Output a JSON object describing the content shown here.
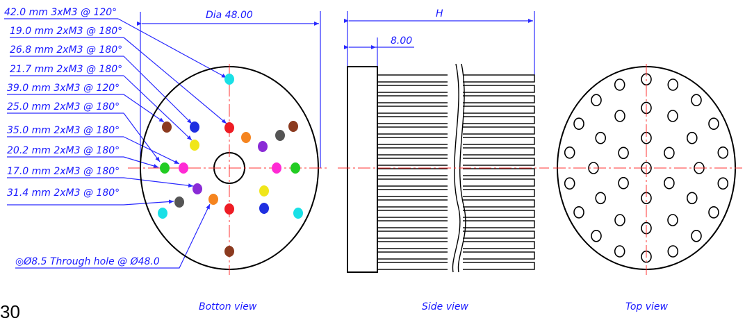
{
  "callouts": [
    {
      "label": "42.0 mm 3xM3 @ 120°",
      "color": "#19e0e6"
    },
    {
      "label": "19.0 mm 2xM3 @ 180°",
      "color": "#ee1c24"
    },
    {
      "label": "26.8 mm 2xM3 @ 180°",
      "color": "#1f2fe0"
    },
    {
      "label": "21.7 mm 2xM3 @ 180°",
      "color": "#f0e61a"
    },
    {
      "label": "39.0 mm 3xM3 @ 120°",
      "color": "#8b3a1f"
    },
    {
      "label": "25.0 mm 2xM3 @ 180°",
      "color": "#22cc22"
    },
    {
      "label": "35.0 mm 2xM3 @ 180°",
      "color": "#ff2ad4"
    },
    {
      "label": "20.2 mm 2xM3 @ 180°",
      "color": "#ff2ad4"
    },
    {
      "label": "17.0 mm 2xM3 @ 180°",
      "color": "#8a2bd6"
    },
    {
      "label": "31.4 mm 2xM3 @ 180°",
      "color": "#555555"
    }
  ],
  "through_hole_note": "◎Ø8.5 Through hole @ Ø48.0",
  "dimensions": {
    "diameter": "Dia 48.00",
    "height": "H",
    "base_thickness": "8.00"
  },
  "captions": {
    "bottom": "Botton view",
    "side": "Side view",
    "top": "Top view"
  },
  "page_number": "30",
  "hole_colors": {
    "cyan": "#19e0e6",
    "red": "#ee1c24",
    "blue": "#1f2fe0",
    "yellow": "#f0e61a",
    "brown": "#8b3a1f",
    "orange": "#f5841f",
    "gray": "#555555",
    "purple": "#8a2bd6",
    "magenta": "#ff2ad4",
    "green": "#22cc22"
  }
}
